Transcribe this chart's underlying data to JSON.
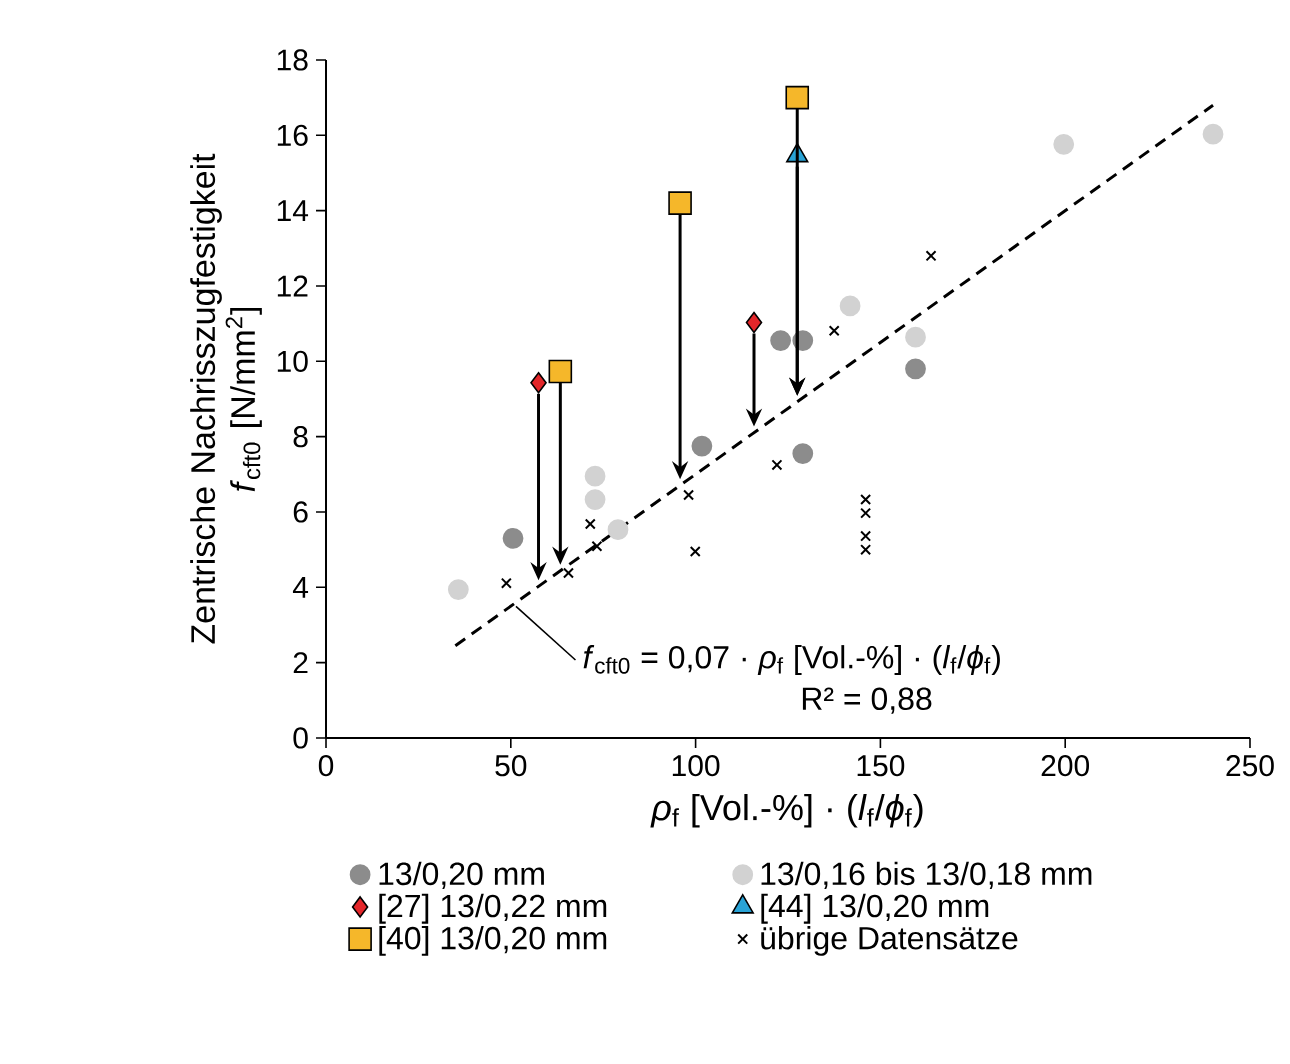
{
  "chart_data": {
    "type": "scatter",
    "xlabel": "*ρ*$_{f}$ [Vol.-%] · (*l*$_{f}$/*ϕ*$_{f}$)",
    "ylabel": "Zentrische Nachrisszugfestigkeit *f*$_{cft0}$ [N/mm$^{2}$]",
    "xlim": [
      0,
      250
    ],
    "ylim": [
      0,
      18
    ],
    "xticks": [
      0,
      50,
      100,
      150,
      200,
      250
    ],
    "yticks": [
      0,
      2,
      4,
      6,
      8,
      10,
      12,
      14,
      16,
      18
    ],
    "legend": "bottom",
    "annotations": [
      "*f*$_{cft0}$ = 0,07 · *ρ*$_{f}$ [Vol.-%] · (*l*$_{f}$/*ϕ*$_{f}$)",
      "R² = 0,88"
    ],
    "series": [
      {
        "name": "13/0,20 mm",
        "marker": "circle",
        "color": "#8c8c8c",
        "x": [
          50.6,
          101.7,
          123,
          129,
          129,
          159.5
        ],
        "values": [
          5.3,
          7.75,
          10.55,
          10.55,
          7.55,
          9.8
        ]
      },
      {
        "name": "13/0,16 bis 13/0,18 mm",
        "marker": "circle",
        "color": "#d2d2d2",
        "x": [
          35.8,
          72.8,
          72.8,
          79,
          141.8,
          159.5,
          199.6,
          240
        ],
        "values": [
          3.94,
          6.95,
          6.33,
          5.53,
          11.47,
          10.64,
          15.76,
          16.03
        ]
      },
      {
        "name": "[27] 13/0,22 mm",
        "marker": "diamond",
        "color": "#e3262a",
        "x": [
          57.5,
          115.8
        ],
        "values": [
          9.43,
          11.03
        ]
      },
      {
        "name": "[44] 13/0,20 mm",
        "marker": "triangle",
        "color": "#29a3d6",
        "x": [
          127.5
        ],
        "values": [
          15.46
        ]
      },
      {
        "name": "[40] 13/0,20 mm",
        "marker": "square",
        "color": "#f5b72a",
        "x": [
          63.4,
          95.8,
          127.5
        ],
        "values": [
          9.73,
          14.2,
          17.0
        ]
      },
      {
        "name": "übrige Datensätze",
        "marker": "cross",
        "color": "#000000",
        "x": [
          48.8,
          65.6,
          71.5,
          73.3,
          98.1,
          99.9,
          122,
          137.5,
          163.7,
          146,
          146,
          146,
          146
        ],
        "values": [
          4.11,
          4.38,
          5.68,
          5.09,
          6.45,
          4.95,
          7.25,
          10.81,
          12.8,
          6.33,
          5.97,
          5.36,
          5.0
        ]
      },
      {
        "type": "line",
        "line_style": "dashed",
        "color": "#000000",
        "x": [
          35,
          240
        ],
        "values": [
          2.45,
          16.8
        ]
      }
    ]
  }
}
